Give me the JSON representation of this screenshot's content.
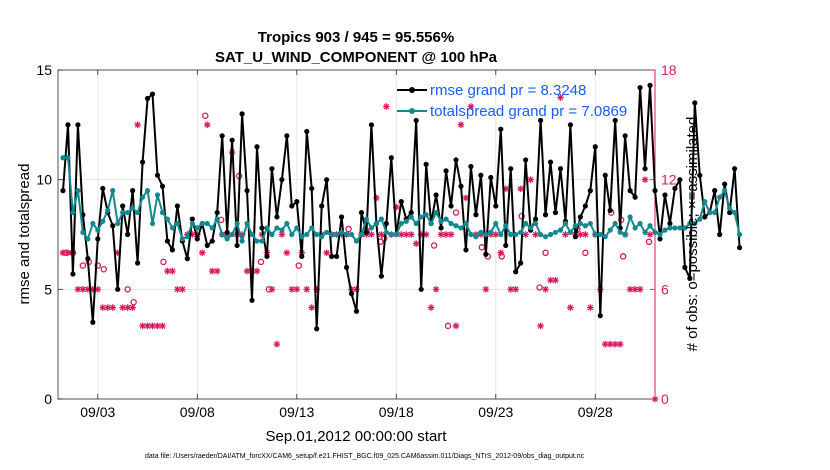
{
  "colors": {
    "rmse": "#000000",
    "spread": "#11898f",
    "obs": "#d9195f",
    "legend_text": "#1a5cff",
    "grid": "#e6e6e6"
  },
  "chart_data": {
    "type": "line",
    "title_line1": "Tropics 903 / 945 = 95.556%",
    "title_line2": "SAT_U_WIND_COMPONENT @ 100 hPa",
    "xlabel": "Sep.01,2012 00:00:00 start",
    "ylabel_left": "rmse and totalspread",
    "ylabel_right": "# of obs: o=possible; ×=assimilated",
    "xlim": [
      1.0,
      31.0
    ],
    "ylim_left": [
      0,
      15
    ],
    "ylim_right": [
      0,
      18
    ],
    "x_ticks": [
      3,
      8,
      13,
      18,
      23,
      28
    ],
    "x_tick_labels": [
      "09/03",
      "09/08",
      "09/13",
      "09/18",
      "09/23",
      "09/28"
    ],
    "y_ticks_left": [
      "0",
      "5",
      "10",
      "15"
    ],
    "y_ticks_right": [
      "0",
      "6",
      "12",
      "18"
    ],
    "legend": [
      {
        "label": "rmse grand pr = 8.3248",
        "series": "rmse"
      },
      {
        "label": "totalspread grand pr = 7.0869",
        "series": "spread"
      }
    ],
    "footnote": "data file: /Users/raeder/DAI/ATM_forcXX/CAM6_setup/f.e21.FHIST_BGC.f09_025.CAM6assim.011/Diags_NTrS_2012-09/obs_diag_output.nc",
    "series": [
      {
        "name": "rmse",
        "x_start": 1.25,
        "x_step": 0.25,
        "values": [
          9.5,
          12.5,
          5.7,
          12.5,
          8.4,
          6.4,
          3.5,
          7.3,
          9.6,
          8.5,
          7.9,
          5.0,
          8.8,
          7.5,
          9.5,
          6.2,
          10.8,
          13.7,
          13.9,
          10.2,
          9.7,
          7.2,
          6.8,
          8.8,
          7.2,
          6.4,
          8.2,
          7.3,
          8.0,
          7.0,
          7.2,
          8.5,
          12.0,
          7.6,
          11.8,
          7.0,
          13.0,
          9.5,
          4.5,
          11.5,
          7.8,
          6.5,
          10.5,
          8.3,
          10.0,
          12.0,
          8.8,
          9.0,
          6.5,
          12.2,
          9.6,
          3.2,
          8.8,
          10.0,
          6.5,
          6.5,
          8.3,
          6.0,
          4.8,
          4.0,
          8.5,
          7.6,
          12.5,
          8.0,
          5.6,
          8.0,
          11.0,
          7.5,
          9.0,
          8.2,
          8.5,
          12.7,
          5.0,
          10.7,
          8.0,
          9.3,
          7.8,
          10.4,
          8.8,
          10.9,
          9.7,
          6.8,
          10.6,
          8.4,
          10.2,
          6.6,
          10.1,
          8.8,
          12.3,
          7.0,
          10.5,
          5.8,
          6.2,
          10.9,
          7.7,
          8.2,
          12.7,
          8.4,
          10.8,
          8.5,
          10.5,
          8.1,
          12.5,
          7.4,
          8.3,
          8.8,
          9.5,
          11.5,
          3.8,
          10.2,
          8.6,
          12.7,
          7.8,
          12.0,
          9.5,
          9.2,
          14.2,
          10.5,
          14.3,
          9.5,
          7.3,
          9.3,
          8.0,
          9.6,
          10.0,
          6.0,
          5.5,
          13.5,
          10.2,
          8.3,
          8.5,
          9.5,
          7.5,
          9.8,
          8.5,
          10.5,
          6.9
        ]
      },
      {
        "name": "spread",
        "x_start": 1.25,
        "x_step": 0.25,
        "values": [
          11.0,
          11.0,
          8.5,
          9.5,
          7.6,
          7.3,
          8.0,
          7.7,
          8.1,
          8.6,
          9.5,
          8.0,
          8.5,
          8.5,
          8.7,
          8.5,
          9.2,
          9.5,
          8.0,
          9.3,
          8.5,
          8.2,
          7.8,
          8.0,
          7.3,
          7.4,
          8.0,
          7.8,
          8.0,
          8.0,
          7.8,
          8.2,
          7.5,
          7.3,
          7.5,
          8.0,
          7.2,
          8.0,
          7.5,
          7.2,
          7.2,
          7.8,
          7.5,
          7.8,
          7.7,
          8.0,
          7.5,
          7.8,
          7.4,
          7.5,
          7.8,
          7.5,
          7.4,
          7.6,
          7.5,
          7.5,
          7.6,
          7.5,
          7.5,
          7.2,
          7.5,
          8.2,
          7.8,
          8.0,
          8.2,
          7.6,
          7.5,
          7.5,
          8.0,
          8.1,
          8.3,
          8.0,
          8.3,
          8.4,
          8.0,
          8.5,
          8.1,
          8.2,
          8.0,
          7.9,
          7.8,
          8.0,
          7.5,
          7.4,
          7.6,
          7.5,
          7.6,
          8.0,
          7.5,
          7.9,
          7.5,
          7.5,
          7.6,
          8.0,
          7.8,
          8.0,
          7.5,
          7.4,
          7.5,
          7.6,
          7.7,
          8.0,
          7.6,
          7.9,
          8.0,
          7.9,
          8.0,
          7.5,
          7.5,
          7.4,
          7.7,
          8.0,
          7.6,
          7.5,
          8.3,
          7.8,
          8.0,
          7.6,
          7.9,
          7.6,
          7.5,
          7.7,
          7.8,
          7.8,
          7.8,
          7.8,
          8.0,
          8.0,
          8.2,
          9.0,
          8.5,
          8.5,
          9.2,
          9.5,
          8.7,
          8.5,
          7.5
        ]
      }
    ],
    "obs_possible": [
      [
        1.4,
        8.0
      ],
      [
        1.75,
        8.0
      ],
      [
        2.25,
        7.3
      ],
      [
        2.55,
        7.5
      ],
      [
        3.0,
        7.3
      ],
      [
        3.3,
        7.1
      ],
      [
        4.5,
        6.0
      ],
      [
        4.8,
        5.3
      ],
      [
        6.3,
        7.5
      ],
      [
        8.4,
        15.5
      ],
      [
        9.2,
        9.8
      ],
      [
        10.1,
        12.2
      ],
      [
        11.2,
        7.5
      ],
      [
        11.6,
        6.0
      ],
      [
        13.1,
        7.3
      ],
      [
        15.6,
        9.3
      ],
      [
        16.5,
        9.2
      ],
      [
        17.2,
        8.6
      ],
      [
        17.4,
        8.8
      ],
      [
        19.9,
        8.4
      ],
      [
        20.6,
        4.0
      ],
      [
        21.0,
        10.2
      ],
      [
        22.3,
        8.3
      ],
      [
        22.6,
        7.8
      ],
      [
        23.3,
        7.8
      ],
      [
        24.3,
        10.0
      ],
      [
        25.2,
        6.1
      ],
      [
        25.5,
        8.0
      ],
      [
        27.1,
        9.3
      ],
      [
        27.5,
        8.0
      ],
      [
        28.8,
        10.2
      ],
      [
        29.3,
        9.8
      ],
      [
        29.4,
        7.8
      ],
      [
        30.7,
        8.6
      ]
    ],
    "obs_assimilated": [
      [
        1.25,
        8.0
      ],
      [
        1.5,
        8.0
      ],
      [
        1.75,
        8.0
      ],
      [
        2.0,
        6.0
      ],
      [
        2.25,
        6.0
      ],
      [
        2.5,
        6.0
      ],
      [
        2.75,
        6.0
      ],
      [
        3.0,
        6.0
      ],
      [
        3.25,
        5.0
      ],
      [
        3.5,
        5.0
      ],
      [
        3.75,
        5.0
      ],
      [
        4.0,
        8.0
      ],
      [
        4.25,
        5.0
      ],
      [
        4.5,
        5.0
      ],
      [
        4.75,
        5.0
      ],
      [
        5.0,
        15.0
      ],
      [
        5.25,
        4.0
      ],
      [
        5.5,
        4.0
      ],
      [
        5.75,
        4.0
      ],
      [
        6.0,
        4.0
      ],
      [
        6.25,
        4.0
      ],
      [
        6.5,
        7.0
      ],
      [
        6.75,
        7.0
      ],
      [
        7.0,
        6.0
      ],
      [
        7.25,
        6.0
      ],
      [
        7.5,
        9.0
      ],
      [
        7.75,
        9.0
      ],
      [
        8.0,
        9.0
      ],
      [
        8.25,
        8.0
      ],
      [
        8.5,
        15.0
      ],
      [
        8.75,
        7.0
      ],
      [
        9.0,
        7.0
      ],
      [
        9.25,
        9.0
      ],
      [
        9.5,
        9.0
      ],
      [
        9.75,
        13.5
      ],
      [
        10.0,
        9.0
      ],
      [
        10.25,
        9.0
      ],
      [
        10.5,
        7.0
      ],
      [
        10.75,
        7.0
      ],
      [
        11.0,
        7.0
      ],
      [
        11.25,
        9.0
      ],
      [
        11.5,
        8.0
      ],
      [
        11.75,
        6.0
      ],
      [
        12.0,
        3.0
      ],
      [
        12.25,
        9.0
      ],
      [
        12.5,
        8.0
      ],
      [
        12.75,
        6.0
      ],
      [
        13.0,
        6.0
      ],
      [
        13.25,
        8.0
      ],
      [
        13.5,
        6.0
      ],
      [
        13.75,
        5.0
      ],
      [
        14.0,
        6.0
      ],
      [
        14.25,
        9.0
      ],
      [
        14.5,
        8.0
      ],
      [
        14.75,
        9.0
      ],
      [
        15.0,
        9.0
      ],
      [
        15.25,
        9.0
      ],
      [
        15.5,
        9.0
      ],
      [
        15.75,
        6.0
      ],
      [
        16.0,
        6.0
      ],
      [
        16.25,
        9.0
      ],
      [
        16.5,
        9.0
      ],
      [
        16.75,
        9.0
      ],
      [
        17.0,
        11.0
      ],
      [
        17.25,
        9.0
      ],
      [
        17.5,
        16.0
      ],
      [
        17.75,
        9.0
      ],
      [
        18.0,
        10.5
      ],
      [
        18.25,
        9.0
      ],
      [
        18.5,
        9.0
      ],
      [
        18.75,
        9.0
      ],
      [
        19.0,
        8.5
      ],
      [
        19.25,
        9.0
      ],
      [
        19.5,
        9.0
      ],
      [
        19.75,
        5.0
      ],
      [
        20.0,
        6.0
      ],
      [
        20.25,
        9.0
      ],
      [
        20.5,
        9.0
      ],
      [
        20.75,
        9.0
      ],
      [
        21.0,
        4.0
      ],
      [
        21.25,
        15.0
      ],
      [
        21.5,
        11.0
      ],
      [
        21.75,
        16.0
      ],
      [
        22.0,
        9.0
      ],
      [
        22.25,
        9.0
      ],
      [
        22.5,
        6.0
      ],
      [
        22.75,
        9.0
      ],
      [
        23.0,
        9.0
      ],
      [
        23.25,
        8.0
      ],
      [
        23.5,
        11.5
      ],
      [
        23.75,
        6.0
      ],
      [
        24.0,
        6.0
      ],
      [
        24.25,
        11.5
      ],
      [
        24.5,
        9.0
      ],
      [
        24.75,
        12.0
      ],
      [
        25.0,
        9.0
      ],
      [
        25.25,
        4.0
      ],
      [
        25.5,
        6.0
      ],
      [
        25.75,
        6.5
      ],
      [
        26.0,
        6.5
      ],
      [
        26.25,
        16.5
      ],
      [
        26.5,
        9.0
      ],
      [
        26.75,
        5.0
      ],
      [
        27.0,
        9.0
      ],
      [
        27.25,
        9.0
      ],
      [
        27.5,
        9.0
      ],
      [
        27.75,
        5.0
      ],
      [
        28.0,
        9.0
      ],
      [
        28.25,
        6.0
      ],
      [
        28.5,
        3.0
      ],
      [
        28.75,
        3.0
      ],
      [
        29.0,
        3.0
      ],
      [
        29.25,
        3.0
      ],
      [
        29.5,
        9.0
      ],
      [
        29.75,
        6.0
      ],
      [
        30.0,
        6.0
      ],
      [
        30.25,
        6.0
      ],
      [
        30.5,
        12.0
      ],
      [
        30.75,
        9.0
      ],
      [
        31.0,
        0.0
      ]
    ]
  }
}
